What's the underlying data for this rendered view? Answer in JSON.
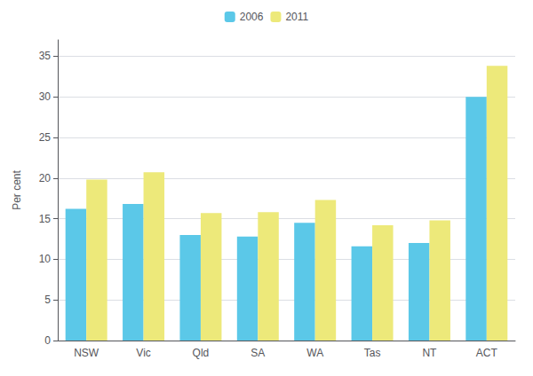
{
  "chart_data": {
    "type": "bar",
    "categories": [
      "NSW",
      "Vic",
      "Qld",
      "SA",
      "WA",
      "Tas",
      "NT",
      "ACT"
    ],
    "series": [
      {
        "name": "2006",
        "color": "#5BC8E8",
        "values": [
          16.2,
          16.8,
          13.0,
          12.8,
          14.5,
          11.6,
          12.0,
          30.0
        ]
      },
      {
        "name": "2011",
        "color": "#EDE97A",
        "values": [
          19.8,
          20.7,
          15.7,
          15.8,
          17.3,
          14.2,
          14.8,
          33.8
        ]
      }
    ],
    "ylabel": "Per cent",
    "ylim": [
      0,
      37
    ],
    "yticks": [
      0,
      5,
      10,
      15,
      20,
      25,
      30,
      35
    ],
    "grid": true,
    "legend": "upper center"
  }
}
